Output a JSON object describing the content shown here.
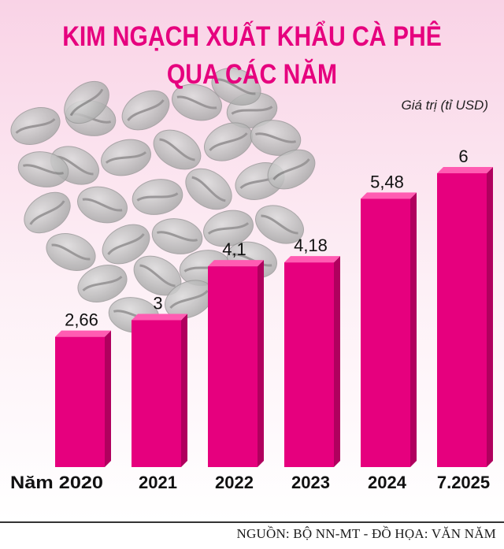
{
  "header": {
    "title_line1": "KIM NGẠCH XUẤT KHẨU CÀ PHÊ",
    "title_line2": "QUA CÁC NĂM"
  },
  "colors": {
    "bar_front": "#e6007e",
    "bar_side": "#b0005e",
    "bar_top": "#ff5cb2",
    "title": "#e6007e"
  },
  "chart_data": {
    "type": "bar",
    "categories": [
      "Năm 2020",
      "2021",
      "2022",
      "2023",
      "2024",
      "7.2025"
    ],
    "values": [
      2.66,
      3,
      4.1,
      4.18,
      5.48,
      6
    ],
    "value_labels": [
      "2,66",
      "3",
      "4,1",
      "4,18",
      "5,48",
      "6"
    ],
    "ylabel": "Giá trị  (tỉ USD)",
    "ylim": [
      0,
      6
    ],
    "grid": false,
    "legend": "none"
  },
  "footer": {
    "source": "NGUỒN: BỘ NN-MT - ĐỒ HỌA: VĂN NĂM"
  }
}
